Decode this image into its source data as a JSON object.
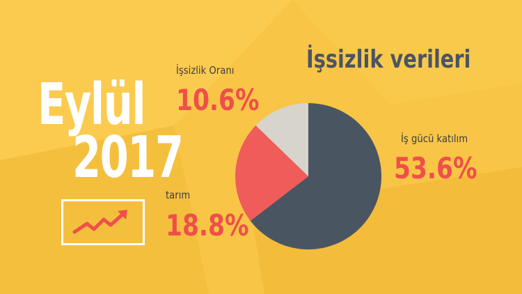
{
  "header": {
    "month": "Eylül",
    "year": "2017"
  },
  "colors": {
    "background": "#f8c546",
    "text_white": "#ffffff",
    "value_red": "#ef4f4b",
    "title_dark": "#4a5562",
    "slice_dark": "#4a5562",
    "slice_red": "#f05c59",
    "slice_grey": "#d7d4cc",
    "trend_red": "#ef4f4b"
  },
  "icons": {
    "trend": "trending-up-arrow-icon"
  },
  "chart_data": {
    "type": "pie",
    "title": "İşsizlik verileri",
    "slices": [
      {
        "label": "İş gücü katılım",
        "value": 53.6,
        "display": "53.6%"
      },
      {
        "label": "tarım",
        "value": 18.8,
        "display": "18.8%"
      },
      {
        "label": "İşsizlik Oranı",
        "value": 10.6,
        "display": "10.6%"
      }
    ]
  }
}
